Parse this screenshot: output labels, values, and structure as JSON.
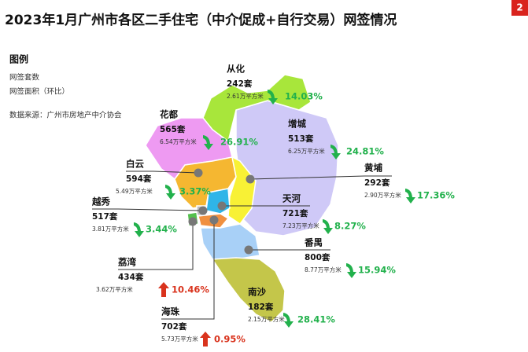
{
  "header": {
    "title": "2023年1月广州市各区二手住宅（中介促成+自行交易）网签情况",
    "badge": "2"
  },
  "legend": {
    "title": "图例",
    "items": [
      "网签套数",
      "网签面积（环比）"
    ],
    "source": "数据来源：广州市房地产中介协会"
  },
  "districts": [
    {
      "name": "从化",
      "count": "242套",
      "area": "2.61万平方米",
      "change": "14.03%",
      "trend": "down"
    },
    {
      "name": "花都",
      "count": "565套",
      "area": "6.54万平方米",
      "change": "26.91%",
      "trend": "down"
    },
    {
      "name": "增城",
      "count": "513套",
      "area": "6.25万平方米",
      "change": "24.81%",
      "trend": "down"
    },
    {
      "name": "白云",
      "count": "594套",
      "area": "5.49万平方米",
      "change": "3.37%",
      "trend": "down"
    },
    {
      "name": "黄埔",
      "count": "292套",
      "area": "2.90万平方米",
      "change": "17.36%",
      "trend": "down"
    },
    {
      "name": "越秀",
      "count": "517套",
      "area": "3.81万平方米",
      "change": "3.44%",
      "trend": "down"
    },
    {
      "name": "天河",
      "count": "721套",
      "area": "7.23万平方米",
      "change": "8.27%",
      "trend": "down"
    },
    {
      "name": "番禺",
      "count": "800套",
      "area": "8.77万平方米",
      "change": "15.94%",
      "trend": "down"
    },
    {
      "name": "荔湾",
      "count": "434套",
      "area": "3.62万平方米",
      "change": "10.46%",
      "trend": "up"
    },
    {
      "name": "南沙",
      "count": "182套",
      "area": "2.15万平方米",
      "change": "28.41%",
      "trend": "down"
    },
    {
      "name": "海珠",
      "count": "702套",
      "area": "5.73万平方米",
      "change": "0.95%",
      "trend": "up"
    }
  ]
}
